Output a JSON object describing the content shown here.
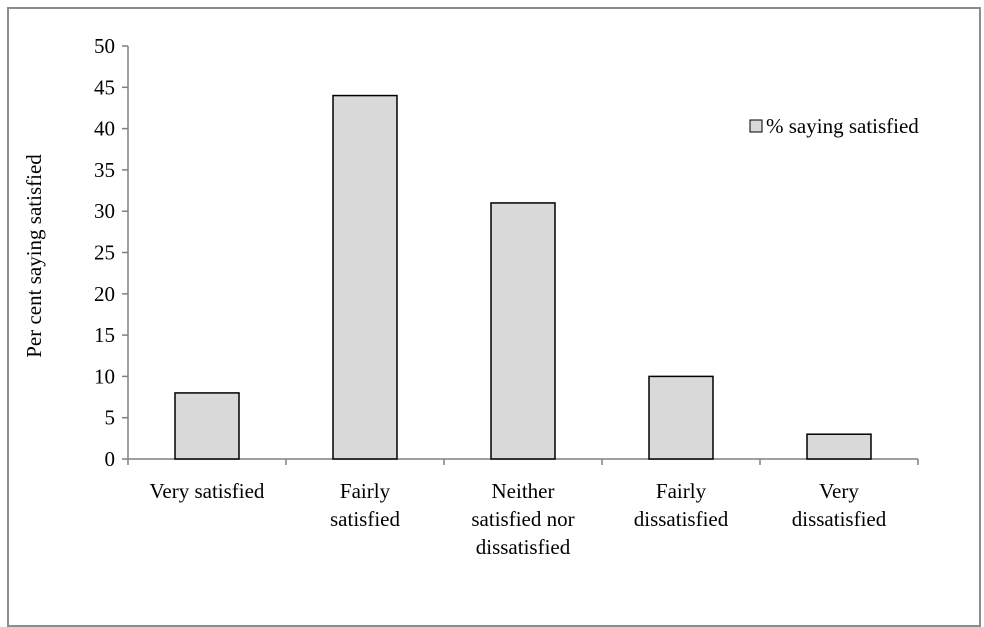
{
  "chart_data": {
    "type": "bar",
    "title": "",
    "xlabel": "",
    "ylabel": "Per cent saying satisfied",
    "ylim": [
      0,
      50
    ],
    "yticks": [
      0,
      5,
      10,
      15,
      20,
      25,
      30,
      35,
      40,
      45,
      50
    ],
    "categories": [
      [
        "Very satisfied"
      ],
      [
        "Fairly",
        "satisfied"
      ],
      [
        "Neither",
        "satisfied nor",
        "dissatisfied"
      ],
      [
        "Fairly",
        "dissatisfied"
      ],
      [
        "Very",
        "dissatisfied"
      ]
    ],
    "series": [
      {
        "name": "% saying satisfied",
        "values": [
          8,
          44,
          31,
          10,
          3
        ]
      }
    ],
    "grid": false,
    "legend_position": "top-right",
    "colors": {
      "bar_fill": "#d9d9d9",
      "bar_stroke": "#000000",
      "axis": "#808080"
    }
  }
}
